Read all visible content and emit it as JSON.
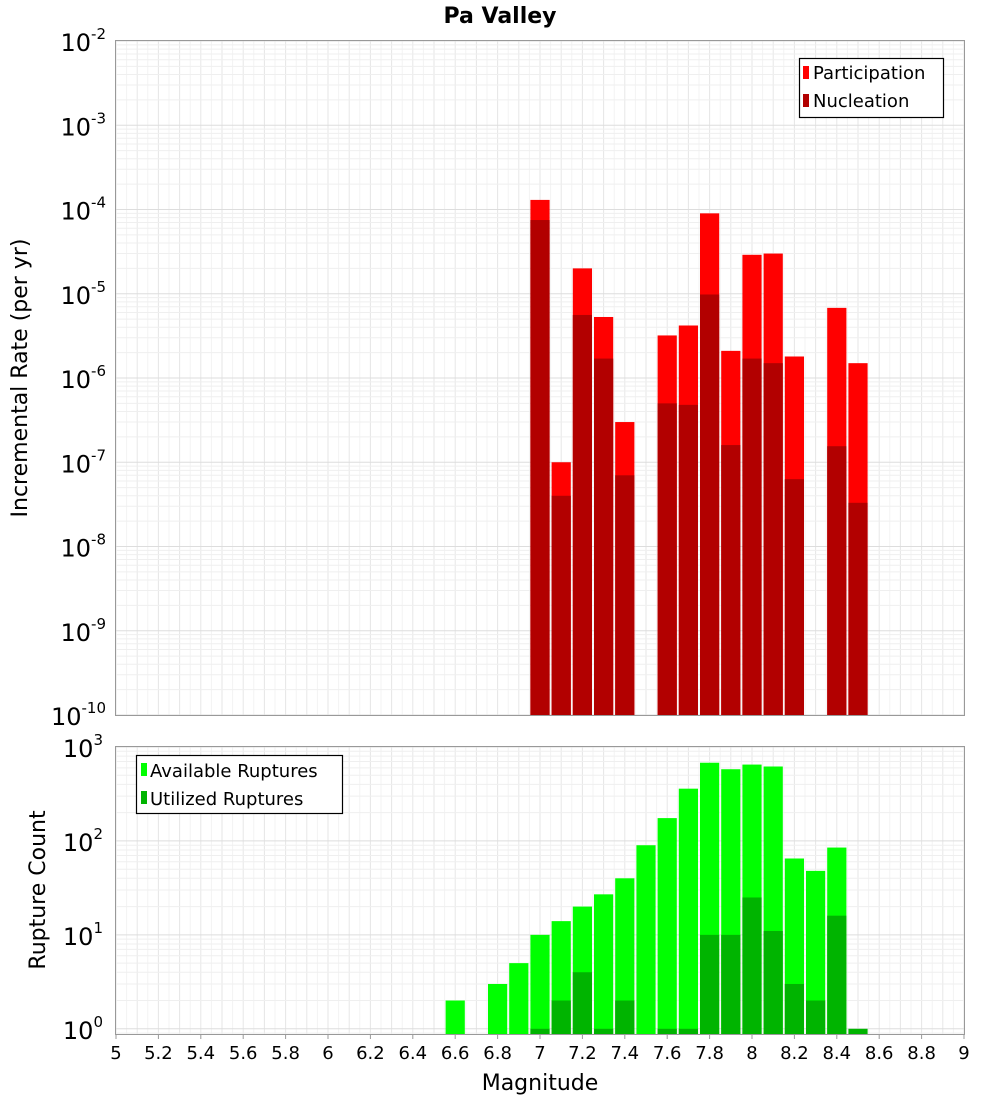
{
  "chart_data": [
    {
      "panel": "top",
      "type": "bar",
      "title": "Pa Valley",
      "ylabel": "Incremental Rate (per yr)",
      "yscale": "log",
      "ylim_exponents": [
        -10,
        -2
      ],
      "ytick_exponents": [
        -2,
        -3,
        -4,
        -5,
        -6,
        -7,
        -8,
        -9,
        -10
      ],
      "ytick_base": "10",
      "grid": true,
      "legend_position": "top-right",
      "x": [
        7.0,
        7.1,
        7.2,
        7.3,
        7.4,
        7.6,
        7.7,
        7.8,
        7.9,
        8.0,
        8.1,
        8.2,
        8.4,
        8.5
      ],
      "series": [
        {
          "name": "Participation",
          "color": "#ff0000",
          "values": [
            0.00013,
            1e-07,
            2e-05,
            5.3e-06,
            3e-07,
            3.2e-06,
            4.2e-06,
            9e-05,
            2.1e-06,
            2.9e-05,
            3e-05,
            1.8e-06,
            6.8e-06,
            1.5e-06
          ]
        },
        {
          "name": "Nucleation",
          "color": "#b20000",
          "values": [
            7.5e-05,
            4e-08,
            5.6e-06,
            1.7e-06,
            7e-08,
            5e-07,
            4.8e-07,
            9.8e-06,
            1.6e-07,
            1.7e-06,
            1.5e-06,
            6.3e-08,
            1.55e-07,
            3.3e-08
          ]
        }
      ]
    },
    {
      "panel": "bottom",
      "type": "bar",
      "xlabel": "Magnitude",
      "ylabel": "Rupture Count",
      "yscale": "log",
      "ylim_exponents": [
        0,
        3
      ],
      "ytick_exponents": [
        3,
        2,
        1,
        0
      ],
      "ytick_base": "10",
      "xlim": [
        5,
        9
      ],
      "xticks": [
        "5",
        "5.2",
        "5.4",
        "5.6",
        "5.8",
        "6",
        "6.2",
        "6.4",
        "6.6",
        "6.8",
        "7",
        "7.2",
        "7.4",
        "7.6",
        "7.8",
        "8",
        "8.2",
        "8.4",
        "8.6",
        "8.8",
        "9"
      ],
      "grid": true,
      "legend_position": "top-left",
      "series": [
        {
          "name": "Available Ruptures",
          "color": "#00ff00",
          "x": [
            6.6,
            6.8,
            6.9,
            7.0,
            7.1,
            7.2,
            7.3,
            7.4,
            7.5,
            7.6,
            7.7,
            7.8,
            7.9,
            8.0,
            8.1,
            8.2,
            8.3,
            8.4
          ],
          "values": [
            2,
            3,
            5,
            10,
            14,
            20,
            27,
            40,
            90,
            175,
            360,
            680,
            580,
            650,
            620,
            65,
            48,
            85
          ]
        },
        {
          "name": "Utilized Ruptures",
          "color": "#00b400",
          "x": [
            7.0,
            7.1,
            7.2,
            7.3,
            7.4,
            7.6,
            7.7,
            7.8,
            7.9,
            8.0,
            8.1,
            8.2,
            8.3,
            8.4,
            8.5
          ],
          "values": [
            1,
            2,
            4,
            1,
            2,
            1,
            1,
            10,
            10,
            25,
            11,
            3,
            2,
            16,
            1
          ]
        }
      ]
    }
  ]
}
